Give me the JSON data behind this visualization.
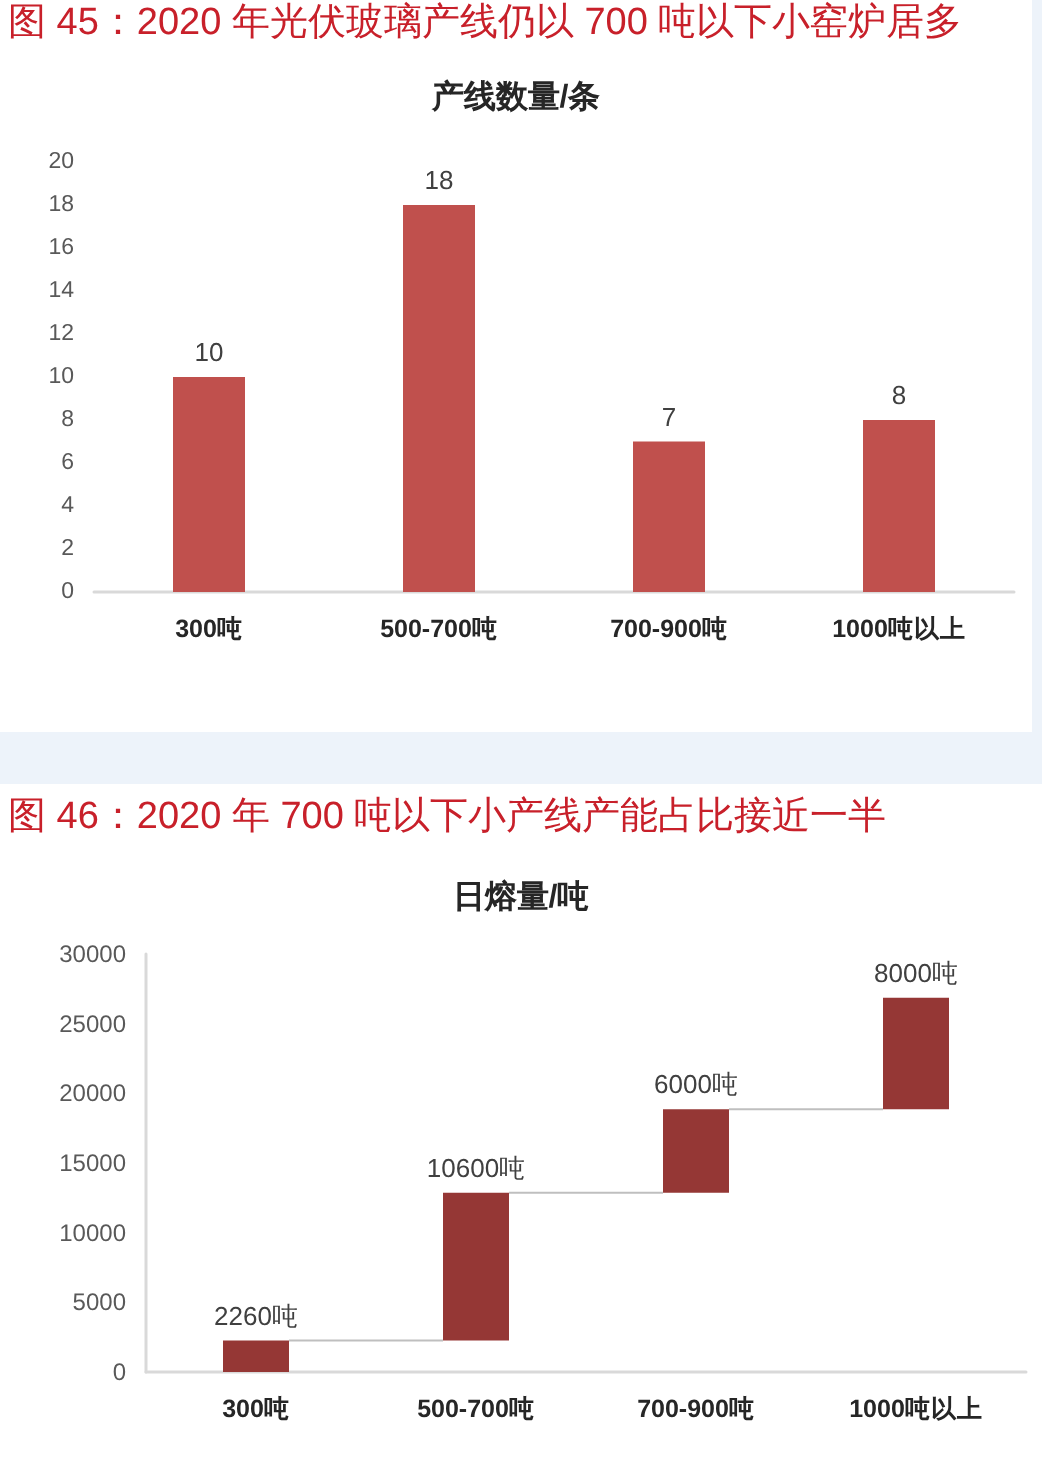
{
  "chart_data": [
    {
      "type": "bar",
      "title": "图 45：2020 年光伏玻璃产线仍以 700 吨以下小窑炉居多",
      "subtitle": "产线数量/条",
      "categories": [
        "300吨",
        "500-700吨",
        "700-900吨",
        "1000吨以上"
      ],
      "values": [
        10,
        18,
        7,
        8
      ],
      "color": "#c0504d",
      "ylim": [
        0,
        20
      ],
      "yticks": [
        0,
        2,
        4,
        6,
        8,
        10,
        12,
        14,
        16,
        18,
        20
      ],
      "data_labels": true
    },
    {
      "type": "bar",
      "title": "图 46：2020 年 700 吨以下小产线产能占比接近一半",
      "subtitle": "日熔量/吨",
      "categories": [
        "300吨",
        "500-700吨",
        "700-900吨",
        "1000吨以上"
      ],
      "values": [
        2260,
        10600,
        6000,
        8000
      ],
      "base": [
        0,
        2260,
        12860,
        18860
      ],
      "value_labels": [
        "2260吨",
        "10600吨",
        "6000吨",
        "8000吨"
      ],
      "color": "#953735",
      "ylim": [
        0,
        30000
      ],
      "yticks": [
        0,
        5000,
        10000,
        15000,
        20000,
        25000,
        30000
      ]
    }
  ]
}
